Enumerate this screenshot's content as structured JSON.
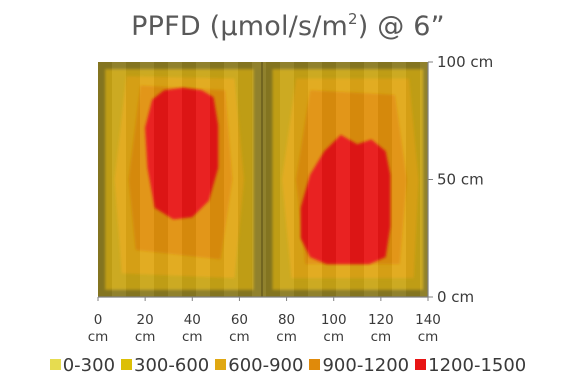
{
  "chart_data": {
    "type": "heatmap",
    "title_main": "PPFD (µmol/s/m",
    "title_sup": "2",
    "title_tail": ") @ 6”",
    "x_ticks": [
      {
        "value": 0,
        "num": "0",
        "unit": "cm"
      },
      {
        "value": 20,
        "num": "20",
        "unit": "cm"
      },
      {
        "value": 40,
        "num": "40",
        "unit": "cm"
      },
      {
        "value": 60,
        "num": "60",
        "unit": "cm"
      },
      {
        "value": 80,
        "num": "80",
        "unit": "cm"
      },
      {
        "value": 100,
        "num": "100",
        "unit": "cm"
      },
      {
        "value": 120,
        "num": "120",
        "unit": "cm"
      },
      {
        "value": 140,
        "num": "140",
        "unit": "cm"
      }
    ],
    "y_ticks": [
      {
        "value": 0,
        "label": "0 cm"
      },
      {
        "value": 50,
        "label": "50 cm"
      },
      {
        "value": 100,
        "label": "100 cm"
      }
    ],
    "xlim": [
      0,
      140
    ],
    "ylim": [
      0,
      100
    ],
    "legend": [
      {
        "label": "0-300",
        "color": "#e6dc50"
      },
      {
        "label": "300-600",
        "color": "#dcbf05"
      },
      {
        "label": "600-900",
        "color": "#e0a812"
      },
      {
        "label": "900-1200",
        "color": "#e08a0a"
      },
      {
        "label": "1200-1500",
        "color": "#e81414"
      }
    ],
    "zones": [
      {
        "band": "0-300",
        "color": "#8a7a22",
        "points": [
          [
            0,
            0
          ],
          [
            140,
            0
          ],
          [
            140,
            100
          ],
          [
            0,
            100
          ]
        ]
      },
      {
        "band": "300-600",
        "color": "#c9a517",
        "points": [
          [
            3,
            3
          ],
          [
            66,
            3
          ],
          [
            66,
            97
          ],
          [
            3,
            97
          ]
        ]
      },
      {
        "band": "300-600",
        "color": "#c9a517",
        "points": [
          [
            74,
            3
          ],
          [
            138,
            3
          ],
          [
            138,
            97
          ],
          [
            74,
            97
          ]
        ]
      },
      {
        "band": "600-900",
        "color": "#e0a812",
        "points": [
          [
            10,
            10
          ],
          [
            58,
            8
          ],
          [
            62,
            50
          ],
          [
            58,
            93
          ],
          [
            12,
            94
          ],
          [
            7,
            50
          ]
        ]
      },
      {
        "band": "600-900",
        "color": "#e0a812",
        "points": [
          [
            82,
            8
          ],
          [
            134,
            8
          ],
          [
            136,
            50
          ],
          [
            132,
            93
          ],
          [
            84,
            93
          ],
          [
            78,
            50
          ]
        ]
      },
      {
        "band": "900-1200",
        "color": "#e0900a",
        "points": [
          [
            16,
            20
          ],
          [
            52,
            16
          ],
          [
            57,
            50
          ],
          [
            54,
            88
          ],
          [
            18,
            90
          ],
          [
            13,
            50
          ]
        ]
      },
      {
        "band": "900-1200",
        "color": "#e0900a",
        "points": [
          [
            88,
            14
          ],
          [
            128,
            14
          ],
          [
            131,
            50
          ],
          [
            126,
            86
          ],
          [
            90,
            88
          ],
          [
            84,
            50
          ]
        ]
      },
      {
        "band": "1200-1500",
        "color": "#e81414",
        "points": [
          [
            24,
            38
          ],
          [
            32,
            33
          ],
          [
            40,
            34
          ],
          [
            47,
            41
          ],
          [
            51,
            55
          ],
          [
            51,
            73
          ],
          [
            49,
            85
          ],
          [
            44,
            88
          ],
          [
            36,
            89
          ],
          [
            28,
            88
          ],
          [
            23,
            84
          ],
          [
            20,
            72
          ],
          [
            21,
            55
          ]
        ]
      },
      {
        "band": "1200-1500",
        "color": "#e81414",
        "points": [
          [
            97,
            14
          ],
          [
            115,
            14
          ],
          [
            122,
            17
          ],
          [
            124,
            30
          ],
          [
            124,
            52
          ],
          [
            122,
            62
          ],
          [
            116,
            67
          ],
          [
            110,
            65
          ],
          [
            103,
            69
          ],
          [
            96,
            62
          ],
          [
            90,
            52
          ],
          [
            86,
            38
          ],
          [
            86,
            25
          ],
          [
            90,
            17
          ]
        ]
      }
    ]
  }
}
